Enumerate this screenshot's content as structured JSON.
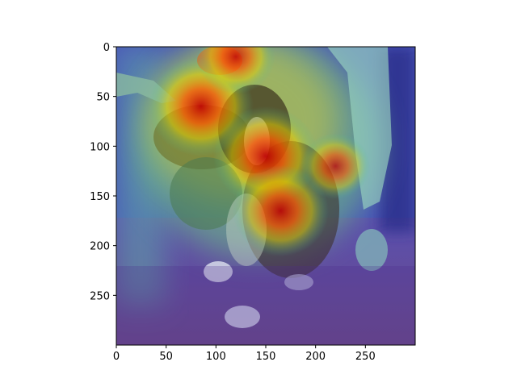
{
  "chart_data": {
    "type": "heatmap",
    "title": "",
    "xlabel": "",
    "ylabel": "",
    "xlim": [
      0,
      300
    ],
    "ylim": [
      300,
      0
    ],
    "x_ticks": [
      0,
      50,
      100,
      150,
      200,
      250
    ],
    "y_ticks": [
      0,
      50,
      100,
      150,
      200,
      250
    ],
    "grid": false,
    "colormap": "jet",
    "base_image": "photo of a tricolor dog (black, white and tan) sitting on a carpet in front of a person",
    "heat_hotspots": [
      {
        "x": 85,
        "y": 60,
        "intensity": 1.0
      },
      {
        "x": 150,
        "y": 110,
        "intensity": 1.0
      },
      {
        "x": 165,
        "y": 165,
        "intensity": 0.9
      },
      {
        "x": 120,
        "y": 10,
        "intensity": 0.7
      },
      {
        "x": 220,
        "y": 120,
        "intensity": 0.6
      }
    ],
    "colors": {
      "hot": "#d90000",
      "warm": "#ff9900",
      "mid": "#33cc99",
      "cool": "#3344cc",
      "cold": "#2a1a8a"
    }
  }
}
